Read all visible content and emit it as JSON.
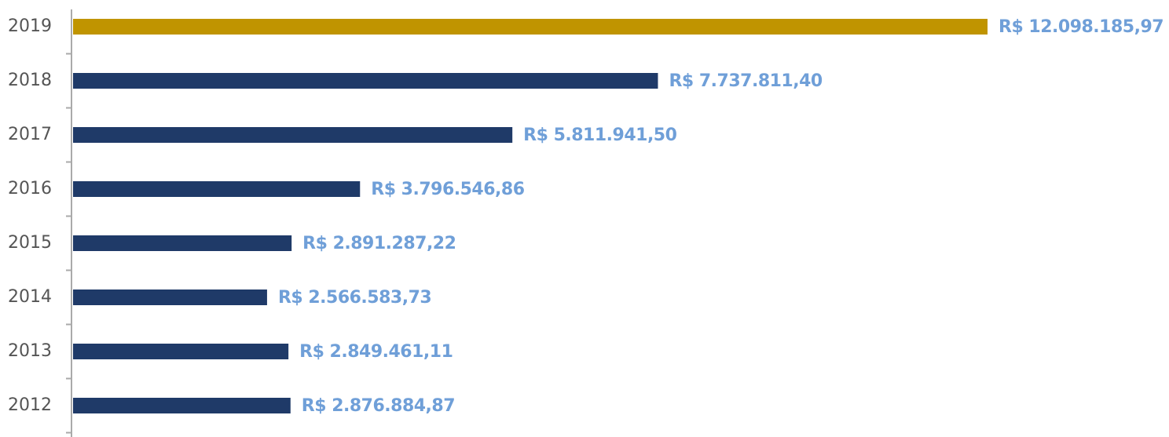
{
  "chart_data": {
    "type": "bar",
    "orientation": "horizontal",
    "categories": [
      "2019",
      "2018",
      "2017",
      "2016",
      "2015",
      "2014",
      "2013",
      "2012"
    ],
    "values": [
      12098185.97,
      7737811.4,
      5811941.5,
      3796546.86,
      2891287.22,
      2566583.73,
      2849461.11,
      2876884.87
    ],
    "value_labels": [
      "R$ 12.098.185,97",
      "R$ 7.737.811,40",
      "R$ 5.811.941,50",
      "R$ 3.796.546,86",
      "R$ 2.891.287,22",
      "R$ 2.566.583,73",
      "R$ 2.849.461,11",
      "R$ 2.876.884,87"
    ],
    "colors": [
      "#c09400",
      "#1f3a68",
      "#1f3a68",
      "#1f3a68",
      "#1f3a68",
      "#1f3a68",
      "#1f3a68",
      "#1f3a68"
    ],
    "label_color": "#6f9fd8"
  }
}
